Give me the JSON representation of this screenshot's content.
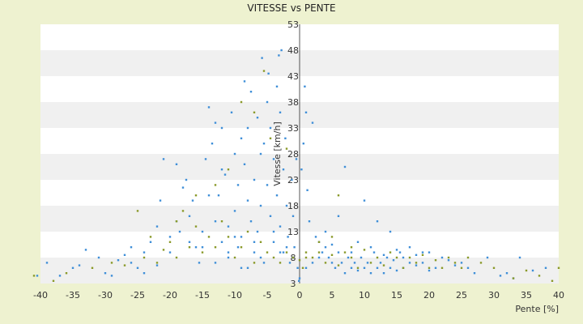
{
  "chart_data": {
    "type": "scatter",
    "title": "VITESSE vs PENTE",
    "xlabel": "Pente [%]",
    "ylabel": "Vitesse [km/h]",
    "xlim": [
      -40,
      40
    ],
    "ylim": [
      3,
      53
    ],
    "xticks": [
      "-40",
      "-35",
      "-30",
      "-25",
      "-20",
      "-15",
      "-10",
      "-5",
      "0",
      "5",
      "10",
      "15",
      "20",
      "25",
      "30",
      "35",
      "40"
    ],
    "yticks": [
      "3",
      "8",
      "13",
      "18",
      "23",
      "28",
      "33",
      "38",
      "43",
      "48",
      "53"
    ],
    "grid": true,
    "band_colors": [
      "#ffffff",
      "#f0f0f0"
    ],
    "series": [
      {
        "color": "#3f8fd8",
        "points": [
          [
            -40.5,
            4.5
          ],
          [
            -39,
            7
          ],
          [
            -37,
            4.5
          ],
          [
            -35,
            6
          ],
          [
            -34,
            6.5
          ],
          [
            -33,
            9.5
          ],
          [
            -31,
            8
          ],
          [
            -30,
            5
          ],
          [
            -29,
            4.5
          ],
          [
            -28,
            7.5
          ],
          [
            -27,
            8.5
          ],
          [
            -26,
            7
          ],
          [
            -25,
            6
          ],
          [
            -24,
            5
          ],
          [
            -23,
            11
          ],
          [
            -22,
            6.5
          ],
          [
            -21.5,
            19
          ],
          [
            -21,
            27
          ],
          [
            -20,
            12
          ],
          [
            -19,
            26
          ],
          [
            -18.5,
            13
          ],
          [
            -18,
            21.5
          ],
          [
            -17.5,
            23
          ],
          [
            -17,
            16
          ],
          [
            -16.5,
            19
          ],
          [
            -16,
            10
          ],
          [
            -15.5,
            7
          ],
          [
            -15,
            13
          ],
          [
            -14.5,
            27
          ],
          [
            -14,
            37
          ],
          [
            -13.5,
            30
          ],
          [
            -13,
            15
          ],
          [
            -13,
            34
          ],
          [
            -12.5,
            20
          ],
          [
            -12,
            11
          ],
          [
            -12,
            33
          ],
          [
            -11.5,
            24
          ],
          [
            -11,
            14
          ],
          [
            -11,
            8
          ],
          [
            -10.5,
            36
          ],
          [
            -10,
            28
          ],
          [
            -10,
            17
          ],
          [
            -9.5,
            22
          ],
          [
            -9.5,
            10
          ],
          [
            -9,
            31
          ],
          [
            -9,
            12
          ],
          [
            -8.5,
            42
          ],
          [
            -8.5,
            26
          ],
          [
            -8,
            19
          ],
          [
            -8,
            33
          ],
          [
            -7.5,
            15
          ],
          [
            -7.5,
            40
          ],
          [
            -7,
            23
          ],
          [
            -7,
            9
          ],
          [
            -6.5,
            35
          ],
          [
            -6.5,
            13
          ],
          [
            -6,
            28
          ],
          [
            -6,
            18
          ],
          [
            -5.8,
            46.5
          ],
          [
            -5.5,
            30
          ],
          [
            -5.5,
            7
          ],
          [
            -5,
            38
          ],
          [
            -5,
            22
          ],
          [
            -4.8,
            43.5
          ],
          [
            -4.5,
            16
          ],
          [
            -4.5,
            33
          ],
          [
            -4,
            27
          ],
          [
            -4,
            11
          ],
          [
            -3.5,
            41
          ],
          [
            -3.5,
            20
          ],
          [
            -3.2,
            47
          ],
          [
            -3,
            36
          ],
          [
            -3,
            14
          ],
          [
            -2.8,
            48
          ],
          [
            -2.5,
            25
          ],
          [
            -2.5,
            9
          ],
          [
            -2.2,
            31
          ],
          [
            -2,
            18
          ],
          [
            -1.8,
            12
          ],
          [
            -1.5,
            7
          ],
          [
            -1.2,
            23
          ],
          [
            -1,
            16
          ],
          [
            -0.8,
            10
          ],
          [
            -0.5,
            27
          ],
          [
            -0.3,
            6
          ],
          [
            -0.1,
            3.5
          ],
          [
            0,
            4
          ],
          [
            0.3,
            25
          ],
          [
            0.6,
            30
          ],
          [
            0.8,
            41
          ],
          [
            1,
            36
          ],
          [
            1.2,
            21
          ],
          [
            1.5,
            15
          ],
          [
            2,
            34
          ],
          [
            2.5,
            12
          ],
          [
            3,
            11
          ],
          [
            3.5,
            9
          ],
          [
            4,
            10
          ],
          [
            4.5,
            8
          ],
          [
            5,
            7
          ],
          [
            5.5,
            6
          ],
          [
            6,
            9
          ],
          [
            6.5,
            7
          ],
          [
            7,
            5
          ],
          [
            7.5,
            8
          ],
          [
            8,
            6
          ],
          [
            8.5,
            7
          ],
          [
            9,
            5.5
          ],
          [
            9.5,
            8
          ],
          [
            10,
            6
          ],
          [
            10.5,
            7
          ],
          [
            11,
            5
          ],
          [
            11.5,
            9
          ],
          [
            12,
            6
          ],
          [
            12.5,
            7
          ],
          [
            13,
            5
          ],
          [
            13.5,
            8
          ],
          [
            14,
            6
          ],
          [
            14.5,
            7.5
          ],
          [
            15,
            5.5
          ],
          [
            15.5,
            9
          ],
          [
            16,
            6
          ],
          [
            17,
            7
          ],
          [
            18,
            6.5
          ],
          [
            19,
            7
          ],
          [
            20,
            5.5
          ],
          [
            21,
            6
          ],
          [
            22,
            8
          ],
          [
            23,
            7.5
          ],
          [
            24,
            6.5
          ],
          [
            25,
            7
          ],
          [
            26,
            6
          ],
          [
            27,
            5
          ],
          [
            29,
            8
          ],
          [
            31,
            4.5
          ],
          [
            32,
            5
          ],
          [
            33,
            4
          ],
          [
            34,
            8
          ],
          [
            36,
            5.5
          ],
          [
            38,
            6
          ],
          [
            7,
            25.5
          ],
          [
            10,
            19
          ],
          [
            12,
            15
          ],
          [
            14,
            13
          ],
          [
            17,
            10
          ],
          [
            19,
            9
          ],
          [
            6,
            16
          ],
          [
            4,
            13
          ],
          [
            9,
            11
          ],
          [
            3,
            8
          ],
          [
            2,
            7
          ],
          [
            1,
            6
          ],
          [
            5,
            10.5
          ],
          [
            8,
            9
          ],
          [
            11,
            10
          ],
          [
            13,
            8.5
          ],
          [
            15,
            9.5
          ],
          [
            16,
            8
          ],
          [
            18,
            8.5
          ],
          [
            20,
            9
          ],
          [
            -22,
            14
          ],
          [
            -24,
            9
          ],
          [
            -26,
            10
          ],
          [
            -20,
            9
          ],
          [
            -19,
            15
          ],
          [
            -17,
            11
          ],
          [
            -14,
            20
          ],
          [
            -12,
            25
          ],
          [
            -10,
            12
          ],
          [
            -8,
            6
          ],
          [
            -6,
            8
          ],
          [
            -4,
            13
          ],
          [
            -2,
            10
          ],
          [
            -1,
            8
          ],
          [
            -15,
            10
          ],
          [
            -13,
            7
          ],
          [
            -11,
            9
          ],
          [
            -9,
            6
          ],
          [
            -7,
            11
          ],
          [
            -3,
            9
          ]
        ]
      },
      {
        "color": "#8a9a2a",
        "points": [
          [
            -41,
            4.5
          ],
          [
            -38,
            3.5
          ],
          [
            -36,
            5
          ],
          [
            -32,
            6
          ],
          [
            -29,
            7
          ],
          [
            -27,
            6.5
          ],
          [
            -25,
            17
          ],
          [
            -24,
            8
          ],
          [
            -23,
            12
          ],
          [
            -22,
            7
          ],
          [
            -21,
            9.5
          ],
          [
            -20,
            11
          ],
          [
            -19,
            8
          ],
          [
            -18,
            17
          ],
          [
            -17,
            10
          ],
          [
            -16,
            14
          ],
          [
            -15,
            9
          ],
          [
            -14,
            12
          ],
          [
            -13,
            10
          ],
          [
            -12,
            15
          ],
          [
            -11,
            12
          ],
          [
            -10,
            8
          ],
          [
            -9,
            10
          ],
          [
            -8,
            13
          ],
          [
            -7,
            7
          ],
          [
            -6,
            11
          ],
          [
            -5,
            9
          ],
          [
            -4,
            8
          ],
          [
            -3,
            7
          ],
          [
            -2,
            9
          ],
          [
            -1,
            8
          ],
          [
            0,
            7.5
          ],
          [
            0.5,
            6
          ],
          [
            1,
            9
          ],
          [
            2,
            8
          ],
          [
            3,
            9
          ],
          [
            4,
            7
          ],
          [
            5,
            8.5
          ],
          [
            6,
            6.5
          ],
          [
            7,
            9
          ],
          [
            8,
            8
          ],
          [
            9,
            6
          ],
          [
            10,
            9.5
          ],
          [
            11,
            7
          ],
          [
            12,
            8
          ],
          [
            13,
            6.5
          ],
          [
            14,
            9
          ],
          [
            15,
            8
          ],
          [
            16,
            6
          ],
          [
            17,
            8
          ],
          [
            18,
            7
          ],
          [
            19,
            8.5
          ],
          [
            20,
            6
          ],
          [
            21,
            7.5
          ],
          [
            22,
            6
          ],
          [
            23,
            8
          ],
          [
            24,
            7
          ],
          [
            25,
            6
          ],
          [
            26,
            8
          ],
          [
            28,
            7
          ],
          [
            30,
            6
          ],
          [
            33,
            4
          ],
          [
            35,
            5.5
          ],
          [
            37,
            4.5
          ],
          [
            39,
            3.5
          ],
          [
            40,
            6
          ],
          [
            6,
            20
          ],
          [
            -5.5,
            44
          ],
          [
            -9,
            38
          ],
          [
            -7,
            36
          ],
          [
            -4.5,
            31
          ],
          [
            -2,
            29
          ],
          [
            -11,
            25
          ],
          [
            -13,
            22
          ],
          [
            -19,
            15
          ],
          [
            -16,
            20
          ],
          [
            1,
            8
          ],
          [
            3,
            11
          ],
          [
            5,
            12
          ],
          [
            8,
            10
          ]
        ]
      }
    ]
  }
}
